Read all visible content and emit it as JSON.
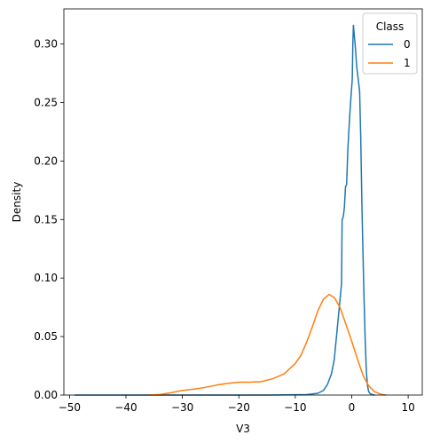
{
  "chart_data": {
    "type": "line",
    "xlabel": "V3",
    "ylabel": "Density",
    "xlim": [
      -51,
      12.5
    ],
    "ylim": [
      0,
      0.33
    ],
    "x_ticks": [
      -50,
      -40,
      -30,
      -20,
      -10,
      0,
      10
    ],
    "y_ticks": [
      0.0,
      0.05,
      0.1,
      0.15,
      0.2,
      0.25,
      0.3
    ],
    "y_tick_labels": [
      "0.00",
      "0.05",
      "0.10",
      "0.15",
      "0.20",
      "0.25",
      "0.30"
    ],
    "legend": {
      "title": "Class",
      "placement": "top-right"
    },
    "series": [
      {
        "name": "0",
        "color": "#1f77b4",
        "points": [
          [
            -49,
            0
          ],
          [
            -30,
            0
          ],
          [
            -15,
            0
          ],
          [
            -8,
            0.0004
          ],
          [
            -6,
            0.0015
          ],
          [
            -5,
            0.004
          ],
          [
            -4.3,
            0.009
          ],
          [
            -3.6,
            0.018
          ],
          [
            -3.1,
            0.03
          ],
          [
            -2.8,
            0.045
          ],
          [
            -2.5,
            0.06
          ],
          [
            -2.2,
            0.075
          ],
          [
            -2.0,
            0.085
          ],
          [
            -1.8,
            0.095
          ],
          [
            -1.7,
            0.15
          ],
          [
            -1.5,
            0.152
          ],
          [
            -1.3,
            0.16
          ],
          [
            -1.1,
            0.178
          ],
          [
            -0.9,
            0.18
          ],
          [
            -0.7,
            0.208
          ],
          [
            -0.4,
            0.235
          ],
          [
            -0.2,
            0.25
          ],
          [
            0.1,
            0.27
          ],
          [
            0.2,
            0.3
          ],
          [
            0.3,
            0.316
          ],
          [
            0.6,
            0.3
          ],
          [
            0.9,
            0.28
          ],
          [
            1.2,
            0.268
          ],
          [
            1.4,
            0.26
          ],
          [
            1.6,
            0.22
          ],
          [
            1.8,
            0.165
          ],
          [
            2.0,
            0.12
          ],
          [
            2.2,
            0.08
          ],
          [
            2.4,
            0.045
          ],
          [
            2.6,
            0.02
          ],
          [
            2.8,
            0.008
          ],
          [
            3.0,
            0.003
          ],
          [
            3.3,
            0.001
          ],
          [
            4.0,
            0
          ]
        ]
      },
      {
        "name": "1",
        "color": "#ff7f0e",
        "points": [
          [
            -36,
            0
          ],
          [
            -34,
            0.0005
          ],
          [
            -32,
            0.002
          ],
          [
            -30,
            0.004
          ],
          [
            -28,
            0.005
          ],
          [
            -26,
            0.0065
          ],
          [
            -24,
            0.0085
          ],
          [
            -22,
            0.01
          ],
          [
            -20,
            0.011
          ],
          [
            -18,
            0.011
          ],
          [
            -16,
            0.0115
          ],
          [
            -14,
            0.014
          ],
          [
            -12,
            0.018
          ],
          [
            -10,
            0.027
          ],
          [
            -9,
            0.034
          ],
          [
            -8,
            0.045
          ],
          [
            -7,
            0.058
          ],
          [
            -6,
            0.072
          ],
          [
            -5,
            0.082
          ],
          [
            -4,
            0.086
          ],
          [
            -3,
            0.083
          ],
          [
            -2,
            0.074
          ],
          [
            -1,
            0.06
          ],
          [
            0,
            0.046
          ],
          [
            1,
            0.031
          ],
          [
            2,
            0.017
          ],
          [
            3,
            0.008
          ],
          [
            4,
            0.003
          ],
          [
            5,
            0.001
          ],
          [
            6,
            0
          ]
        ]
      }
    ]
  }
}
